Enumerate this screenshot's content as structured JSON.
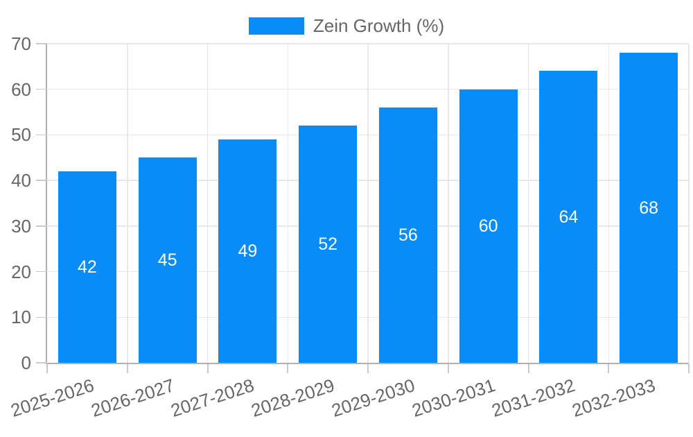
{
  "chart_data": {
    "type": "bar",
    "title": "",
    "xlabel": "",
    "ylabel": "",
    "categories": [
      "2025-2026",
      "2026-2027",
      "2027-2028",
      "2028-2029",
      "2029-2030",
      "2030-2031",
      "2031-2032",
      "2032-2033"
    ],
    "series": [
      {
        "name": "Zein Growth (%)",
        "values": [
          42,
          45,
          49,
          52,
          56,
          60,
          64,
          68
        ],
        "color": "#0a8cf8"
      }
    ],
    "ylim": [
      0,
      70
    ],
    "yticks": [
      0,
      10,
      20,
      30,
      40,
      50,
      60,
      70
    ],
    "grid": true,
    "legend_position": "top",
    "x_label_rotation_deg": -18,
    "data_labels": {
      "show": true,
      "position": "center",
      "color": "#ffffff"
    },
    "colors": {
      "bar": "#0a8cf8",
      "axis_text": "#666666",
      "grid_line": "#e8e8e8",
      "axis_line": "#b0b0b0",
      "tick_mark": "#c9c9c9",
      "data_label": "#ffffff",
      "background": "#ffffff"
    }
  }
}
